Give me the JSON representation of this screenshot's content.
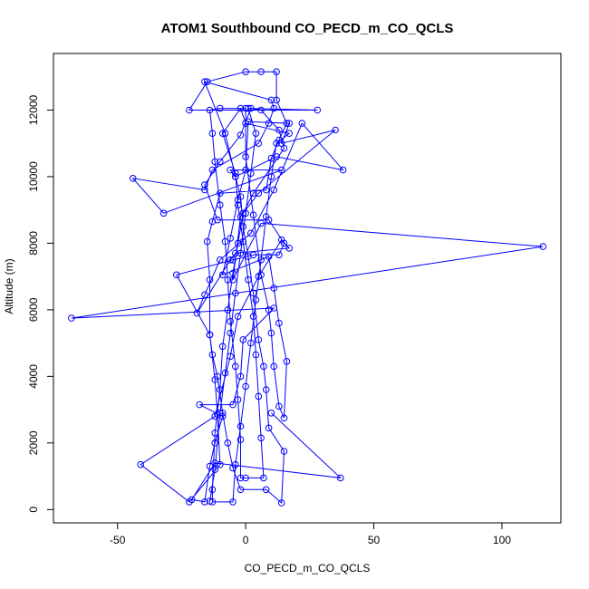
{
  "chart_data": {
    "type": "line",
    "title": "ATOM1 Southbound CO_PECD_m_CO_QCLS",
    "xlabel": "CO_PECD_m_CO_QCLS",
    "ylabel": "Altitude (m)",
    "xlim": [
      -75,
      123
    ],
    "ylim": [
      -400,
      13700
    ],
    "xticks": [
      -50,
      0,
      50,
      100
    ],
    "yticks": [
      0,
      2000,
      4000,
      6000,
      8000,
      10000,
      12000
    ],
    "markers": "open-circle",
    "grid": false,
    "colors": {
      "series": "#0000ff",
      "axis": "#000000"
    },
    "series": [
      {
        "points": [
          [
            -14,
            250
          ],
          [
            -12,
            1200
          ],
          [
            -10,
            2900
          ],
          [
            -8,
            4100
          ],
          [
            -6,
            5300
          ],
          [
            -4,
            6500
          ],
          [
            -2,
            7700
          ],
          [
            0,
            8900
          ],
          [
            2,
            10100
          ],
          [
            4,
            11300
          ],
          [
            1,
            12050
          ],
          [
            28,
            12000
          ],
          [
            -22,
            12000
          ],
          [
            -15,
            12850
          ],
          [
            0,
            13150
          ],
          [
            6,
            13150
          ],
          [
            12,
            13150
          ],
          [
            12,
            12300
          ],
          [
            16,
            11600
          ],
          [
            13,
            11100
          ],
          [
            10,
            10550
          ],
          [
            8,
            9600
          ],
          [
            -10,
            9500
          ],
          [
            -13,
            8650
          ],
          [
            -15,
            8050
          ],
          [
            -14,
            6900
          ],
          [
            -14,
            5250
          ],
          [
            -12,
            3900
          ],
          [
            -11,
            2850
          ],
          [
            -10,
            1350
          ],
          [
            -22,
            230
          ],
          [
            -41,
            1350
          ],
          [
            -12,
            2800
          ],
          [
            -6,
            4600
          ],
          [
            -3,
            5800
          ],
          [
            5,
            7000
          ],
          [
            14,
            8100
          ],
          [
            17,
            7850
          ],
          [
            -4,
            7700
          ],
          [
            -6,
            7500
          ],
          [
            -19,
            5900
          ],
          [
            -16,
            6450
          ],
          [
            -10,
            7500
          ],
          [
            2,
            8300
          ],
          [
            11,
            9600
          ],
          [
            22,
            11600
          ],
          [
            38,
            10200
          ],
          [
            12,
            10600
          ],
          [
            -4,
            10000
          ],
          [
            -6,
            10200
          ],
          [
            14,
            10200
          ],
          [
            -32,
            8900
          ],
          [
            -44,
            9950
          ],
          [
            -16,
            9600
          ],
          [
            -13,
            10200
          ],
          [
            5,
            11000
          ],
          [
            9,
            11600
          ],
          [
            11,
            12050
          ],
          [
            10,
            12300
          ],
          [
            -16,
            12850
          ],
          [
            -8,
            11300
          ],
          [
            -4,
            10000
          ],
          [
            -2,
            9400
          ],
          [
            -1,
            8500
          ],
          [
            1,
            7600
          ],
          [
            3,
            6500
          ],
          [
            5,
            5100
          ],
          [
            7,
            4300
          ],
          [
            8,
            3600
          ],
          [
            9,
            2450
          ],
          [
            15,
            1750
          ],
          [
            14,
            200
          ],
          [
            8,
            600
          ],
          [
            -2,
            600
          ],
          [
            -5,
            1250
          ],
          [
            -7,
            2000
          ],
          [
            -9,
            2900
          ],
          [
            -11,
            4000
          ],
          [
            -13,
            4650
          ],
          [
            -14,
            5250
          ],
          [
            -27,
            7050
          ],
          [
            -5,
            7500
          ],
          [
            3,
            7650
          ],
          [
            13,
            7650
          ],
          [
            15,
            8000
          ],
          [
            9,
            8700
          ],
          [
            -11,
            8700
          ],
          [
            -16,
            9750
          ],
          [
            -10,
            10450
          ],
          [
            -2,
            11250
          ],
          [
            2,
            12050
          ],
          [
            6,
            12000
          ],
          [
            13,
            11400
          ],
          [
            15,
            10850
          ],
          [
            3,
            9500
          ],
          [
            -1,
            8900
          ],
          [
            -3,
            8000
          ],
          [
            -5,
            7100
          ],
          [
            -7,
            6000
          ],
          [
            -9,
            4900
          ],
          [
            -10,
            3600
          ],
          [
            -12,
            2300
          ],
          [
            -13,
            600
          ],
          [
            -13,
            230
          ],
          [
            -5,
            230
          ],
          [
            -4,
            1350
          ],
          [
            -2,
            2500
          ],
          [
            0,
            3700
          ],
          [
            2,
            5000
          ],
          [
            4,
            6300
          ],
          [
            6,
            7500
          ],
          [
            8,
            8800
          ],
          [
            10,
            10000
          ],
          [
            12,
            11000
          ],
          [
            17,
            11300
          ],
          [
            0,
            11600
          ],
          [
            -2,
            12050
          ],
          [
            -9,
            11300
          ],
          [
            -4,
            10100
          ],
          [
            -3,
            9150
          ],
          [
            -1,
            8050
          ],
          [
            1,
            6900
          ],
          [
            3,
            5800
          ],
          [
            4,
            4650
          ],
          [
            5,
            3400
          ],
          [
            6,
            2150
          ],
          [
            7,
            950
          ],
          [
            0,
            950
          ],
          [
            -2,
            950
          ],
          [
            -2,
            2100
          ],
          [
            -3,
            3300
          ],
          [
            -4,
            4300
          ],
          [
            -6,
            5650
          ],
          [
            -7,
            6900
          ],
          [
            -8,
            8050
          ],
          [
            -10,
            9150
          ],
          [
            -12,
            10450
          ],
          [
            -13,
            11300
          ],
          [
            -14,
            12000
          ],
          [
            -10,
            12050
          ],
          [
            0,
            12050
          ],
          [
            0,
            10600
          ],
          [
            3,
            8850
          ],
          [
            6,
            7050
          ],
          [
            9,
            6000
          ],
          [
            10,
            5300
          ],
          [
            11,
            4300
          ],
          [
            13,
            3100
          ],
          [
            15,
            2750
          ],
          [
            16,
            4450
          ],
          [
            13,
            5600
          ],
          [
            11,
            6650
          ],
          [
            9,
            7600
          ],
          [
            -9,
            7050
          ],
          [
            -6,
            8150
          ],
          [
            -3,
            9300
          ],
          [
            0,
            10200
          ],
          [
            1,
            11650
          ],
          [
            17,
            11600
          ],
          [
            14,
            11000
          ],
          [
            35,
            11400
          ],
          [
            5,
            9500
          ],
          [
            -2,
            8800
          ],
          [
            -5,
            6900
          ],
          [
            6,
            8600
          ],
          [
            116,
            7900
          ],
          [
            -68,
            5750
          ],
          [
            11,
            6050
          ],
          [
            -1,
            5100
          ],
          [
            -2,
            4000
          ],
          [
            -5,
            3150
          ],
          [
            -18,
            3150
          ],
          [
            -9,
            2800
          ],
          [
            -12,
            2000
          ],
          [
            -14,
            1300
          ],
          [
            -16,
            230
          ],
          [
            -21,
            300
          ],
          [
            -12,
            1400
          ],
          [
            37,
            950
          ],
          [
            10,
            2900
          ]
        ]
      }
    ]
  }
}
